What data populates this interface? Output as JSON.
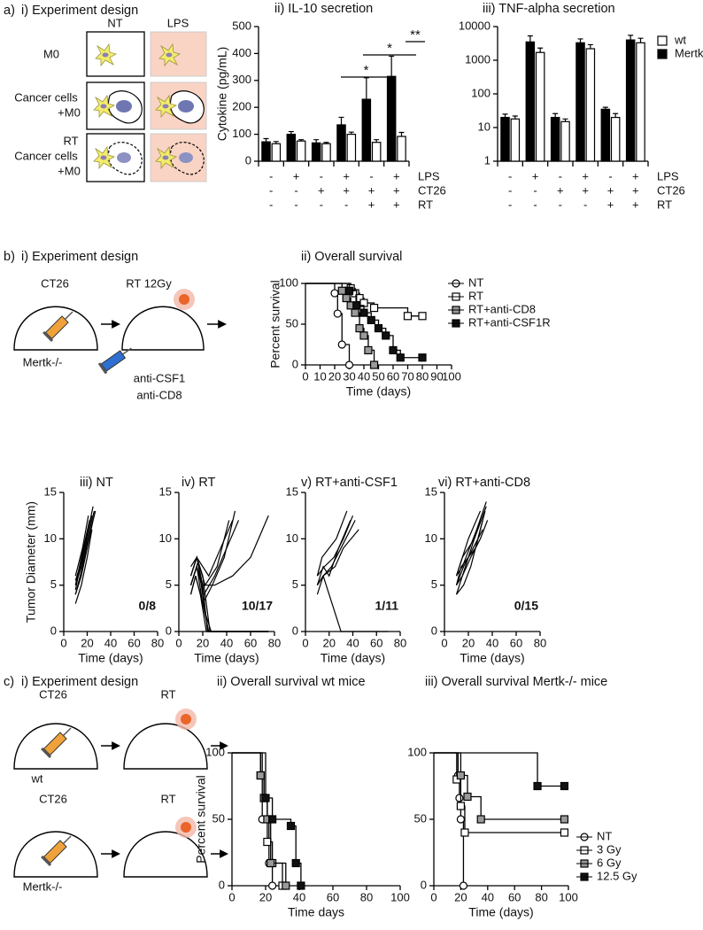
{
  "panel_labels": [
    "a)",
    "b)",
    "c)"
  ],
  "diagram_a": {
    "title": "i) Experiment design",
    "columns": [
      "NT",
      "LPS"
    ],
    "rows": [
      [
        "M0"
      ],
      [
        "Cancer cells",
        "+M0"
      ],
      [
        "RT",
        "Cancer cells",
        "+M0"
      ]
    ]
  },
  "diagram_b": {
    "title": "i) Experiment design",
    "labels": [
      "CT26",
      "RT 12Gy",
      "Mertk-/-",
      "anti-CSF1",
      "anti-CD8"
    ]
  },
  "diagram_c": {
    "title": "i) Experiment design",
    "labels": [
      "CT26",
      "RT",
      "wt",
      "CT26",
      "RT",
      "Mertk-/-"
    ]
  },
  "chart_data": [
    {
      "type": "bar",
      "title": "ii) IL-10 secretion",
      "ylabel": "Cytokine (pg/mL)",
      "ylim": [
        0,
        500
      ],
      "yticks": [
        0,
        100,
        200,
        300,
        400,
        500
      ],
      "series": [
        {
          "color": "#ffffff",
          "values": [
            65,
            75,
            65,
            100,
            70,
            92
          ],
          "errors": [
            8,
            5,
            5,
            8,
            10,
            15
          ]
        },
        {
          "color": "#000000",
          "values": [
            72,
            100,
            68,
            135,
            230,
            315
          ],
          "errors": [
            12,
            10,
            12,
            28,
            80,
            75
          ]
        }
      ],
      "conditions": [
        {
          "name": "LPS",
          "values": [
            "-",
            "+",
            "-",
            "+",
            "-",
            "+"
          ]
        },
        {
          "name": "CT26",
          "values": [
            "-",
            "-",
            "+",
            "+",
            "+",
            "+"
          ]
        },
        {
          "name": "RT",
          "values": [
            "-",
            "-",
            "-",
            "-",
            "+",
            "+"
          ]
        }
      ],
      "annotations": [
        "*",
        "*",
        "**"
      ]
    },
    {
      "type": "bar",
      "title": "iii) TNF-alpha secretion",
      "log": true,
      "ylim": [
        1,
        10000
      ],
      "yticks": [
        1,
        10,
        100,
        1000,
        10000
      ],
      "legend": "right",
      "series": [
        {
          "name": "wt",
          "color": "#ffffff",
          "values": [
            18,
            1700,
            15,
            2200,
            20,
            3300
          ],
          "errors": [
            4,
            600,
            3,
            700,
            6,
            1200
          ]
        },
        {
          "name": "Mertk-/-",
          "color": "#000000",
          "values": [
            20,
            3500,
            20,
            3300,
            35,
            4000
          ],
          "errors": [
            5,
            1800,
            6,
            1000,
            5,
            1500
          ]
        }
      ],
      "conditions": [
        {
          "name": "LPS",
          "values": [
            "-",
            "+",
            "-",
            "+",
            "-",
            "+"
          ]
        },
        {
          "name": "CT26",
          "values": [
            "-",
            "-",
            "+",
            "+",
            "+",
            "+"
          ]
        },
        {
          "name": "RT",
          "values": [
            "-",
            "-",
            "-",
            "-",
            "+",
            "+"
          ]
        }
      ]
    },
    {
      "type": "survival",
      "title": "ii) Overall survival",
      "ylabel": "Percent survival",
      "xlabel": "Time (days)",
      "xlim": [
        0,
        100
      ],
      "xticks": [
        0,
        10,
        20,
        30,
        40,
        50,
        60,
        70,
        80,
        90,
        100
      ],
      "ylim": [
        0,
        100
      ],
      "yticks": [
        0,
        50,
        100
      ],
      "legend": "right",
      "series": [
        {
          "name": "NT",
          "color": "#ffffff",
          "marker": "circle",
          "x": [
            0,
            20,
            22,
            25,
            30
          ],
          "values": [
            100,
            88,
            63,
            25,
            0
          ]
        },
        {
          "name": "RT",
          "color": "#ffffff",
          "marker": "square",
          "x": [
            0,
            31,
            34,
            37,
            40,
            47,
            70,
            80
          ],
          "values": [
            100,
            94,
            88,
            82,
            76,
            70,
            60,
            60
          ]
        },
        {
          "name": "RT+anti-CD8",
          "color": "#9a9a9a",
          "marker": "square",
          "x": [
            0,
            25,
            28,
            31,
            34,
            37,
            40,
            43,
            47
          ],
          "values": [
            100,
            91,
            82,
            73,
            64,
            45,
            36,
            18,
            0
          ]
        },
        {
          "name": "RT+anti-CSF1R",
          "color": "#111111",
          "marker": "square",
          "x": [
            0,
            30,
            35,
            40,
            45,
            50,
            55,
            60,
            65,
            80
          ],
          "values": [
            100,
            91,
            73,
            64,
            55,
            45,
            36,
            18,
            9,
            9
          ]
        }
      ]
    },
    {
      "type": "line",
      "title": "iii) NT",
      "ylabel": "Tumor Diameter (mm)",
      "xlabel": "Time (days)",
      "color": "#000000",
      "xlim": [
        0,
        80
      ],
      "xticks": [
        0,
        20,
        40,
        60,
        80
      ],
      "ylim": [
        0,
        15
      ],
      "yticks": [
        0,
        5,
        10,
        15
      ],
      "annotation": "0/8",
      "series": [
        {
          "x": [
            10,
            15,
            20,
            24
          ],
          "values": [
            3,
            5,
            8,
            11
          ]
        },
        {
          "x": [
            10,
            15,
            20,
            25
          ],
          "values": [
            4,
            6,
            9,
            12
          ]
        },
        {
          "x": [
            10,
            15,
            20,
            26
          ],
          "values": [
            5,
            7,
            10,
            13
          ]
        },
        {
          "x": [
            10,
            14,
            19,
            24
          ],
          "values": [
            4.5,
            7,
            10,
            12.5
          ]
        },
        {
          "x": [
            10,
            15,
            20,
            27
          ],
          "values": [
            4,
            6.5,
            9.5,
            13
          ]
        },
        {
          "x": [
            10,
            15,
            22
          ],
          "values": [
            5,
            8,
            12
          ]
        },
        {
          "x": [
            10,
            16,
            21
          ],
          "values": [
            6,
            9,
            12.5
          ]
        },
        {
          "x": [
            10,
            15,
            20,
            25
          ],
          "values": [
            5.5,
            7.5,
            10.5,
            13.5
          ]
        }
      ]
    },
    {
      "type": "line",
      "title": "iv) RT",
      "xlabel": "Time (days)",
      "color": "#000000",
      "xlim": [
        0,
        80
      ],
      "xticks": [
        0,
        20,
        40,
        60,
        80
      ],
      "ylim": [
        0,
        15
      ],
      "yticks": [
        0,
        5,
        10,
        15
      ],
      "annotation": "10/17",
      "series": [
        {
          "x": [
            10,
            15,
            20,
            25,
            75
          ],
          "values": [
            5,
            7,
            3,
            0,
            0
          ]
        },
        {
          "x": [
            10,
            15,
            20,
            24,
            75
          ],
          "values": [
            6,
            8,
            5,
            0,
            0
          ]
        },
        {
          "x": [
            10,
            14,
            18,
            23,
            75
          ],
          "values": [
            4,
            6,
            4,
            0,
            0
          ]
        },
        {
          "x": [
            10,
            15,
            20,
            26,
            75
          ],
          "values": [
            7,
            8,
            6,
            0,
            0
          ]
        },
        {
          "x": [
            10,
            16,
            22,
            27,
            75
          ],
          "values": [
            5,
            7.5,
            2,
            0,
            0
          ]
        },
        {
          "x": [
            10,
            15,
            21,
            30,
            40,
            50
          ],
          "values": [
            5,
            7,
            4,
            6,
            9,
            12
          ]
        },
        {
          "x": [
            10,
            15,
            22,
            32,
            42
          ],
          "values": [
            6,
            8,
            5,
            7,
            12
          ]
        },
        {
          "x": [
            10,
            14,
            20,
            28,
            38,
            47
          ],
          "values": [
            4,
            6,
            3,
            5,
            8,
            13
          ]
        },
        {
          "x": [
            10,
            15,
            20,
            30,
            45,
            60,
            75
          ],
          "values": [
            5,
            7,
            5,
            5,
            6,
            8,
            12.5
          ]
        },
        {
          "x": [
            10,
            15,
            25,
            35,
            45
          ],
          "values": [
            6,
            8,
            6,
            9,
            12
          ]
        }
      ]
    },
    {
      "type": "line",
      "title": "v) RT+anti-CSF1",
      "xlabel": "Time (days)",
      "color": "#000000",
      "xlim": [
        0,
        80
      ],
      "xticks": [
        0,
        20,
        40,
        60,
        80
      ],
      "ylim": [
        0,
        15
      ],
      "yticks": [
        0,
        5,
        10,
        15
      ],
      "annotation": "1/11",
      "series": [
        {
          "x": [
            10,
            15,
            20,
            25,
            30,
            70
          ],
          "values": [
            5,
            6,
            4,
            2,
            0,
            0
          ]
        },
        {
          "x": [
            10,
            15,
            20,
            28,
            38
          ],
          "values": [
            5,
            7,
            6,
            9,
            12
          ]
        },
        {
          "x": [
            10,
            16,
            24,
            32,
            40
          ],
          "values": [
            6,
            7,
            8,
            10,
            12.5
          ]
        },
        {
          "x": [
            10,
            15,
            22,
            30,
            42
          ],
          "values": [
            4,
            6,
            7,
            9,
            12
          ]
        },
        {
          "x": [
            10,
            14,
            20,
            26,
            35
          ],
          "values": [
            6,
            8,
            9,
            10,
            13
          ]
        },
        {
          "x": [
            10,
            15,
            25,
            32,
            45
          ],
          "values": [
            5,
            6,
            7,
            9,
            11
          ]
        }
      ]
    },
    {
      "type": "line",
      "title": "vi) RT+anti-CD8",
      "xlabel": "Time (days)",
      "color": "#000000",
      "xlim": [
        0,
        80
      ],
      "xticks": [
        0,
        20,
        40,
        60,
        80
      ],
      "ylim": [
        0,
        15
      ],
      "yticks": [
        0,
        5,
        10,
        15
      ],
      "annotation": "0/15",
      "series": [
        {
          "x": [
            10,
            15,
            20,
            25,
            30
          ],
          "values": [
            5,
            6,
            8,
            10,
            12
          ]
        },
        {
          "x": [
            10,
            16,
            22,
            28,
            34
          ],
          "values": [
            4,
            5,
            7,
            10,
            13
          ]
        },
        {
          "x": [
            10,
            15,
            21,
            27,
            35
          ],
          "values": [
            6,
            7,
            9,
            11,
            14
          ]
        },
        {
          "x": [
            10,
            14,
            20,
            26,
            32
          ],
          "values": [
            5,
            7,
            8,
            9,
            12
          ]
        },
        {
          "x": [
            10,
            15,
            20,
            30
          ],
          "values": [
            6,
            8,
            10,
            13
          ]
        },
        {
          "x": [
            10,
            15,
            22,
            30,
            36
          ],
          "values": [
            4,
            6,
            8,
            10,
            12
          ]
        },
        {
          "x": [
            10,
            16,
            24,
            32
          ],
          "values": [
            5,
            7,
            9,
            11
          ]
        },
        {
          "x": [
            10,
            15,
            25,
            35
          ],
          "values": [
            6,
            8,
            10,
            13.5
          ]
        }
      ]
    },
    {
      "type": "survival",
      "title": "ii) Overall survival wt mice",
      "ylabel": "Percent survival",
      "xlabel": "Time days",
      "xlim": [
        0,
        100
      ],
      "xticks": [
        0,
        20,
        40,
        60,
        80,
        100
      ],
      "ylim": [
        0,
        100
      ],
      "yticks": [
        0,
        50,
        100
      ],
      "series": [
        {
          "color": "#ffffff",
          "marker": "circle",
          "x": [
            0,
            18,
            22,
            24
          ],
          "values": [
            100,
            50,
            17,
            0
          ]
        },
        {
          "color": "#ffffff",
          "marker": "square",
          "x": [
            0,
            17,
            19,
            21,
            24,
            30
          ],
          "values": [
            100,
            83,
            66,
            33,
            17,
            0
          ]
        },
        {
          "color": "#9a9a9a",
          "marker": "square",
          "x": [
            0,
            17,
            19,
            21,
            23,
            32
          ],
          "values": [
            100,
            83,
            66,
            50,
            17,
            0
          ]
        },
        {
          "color": "#111111",
          "marker": "square",
          "x": [
            0,
            20,
            24,
            35,
            38,
            41
          ],
          "values": [
            100,
            66,
            50,
            45,
            17,
            0
          ]
        }
      ]
    },
    {
      "type": "survival",
      "title": "iii) Overall survival Mertk-/- mice",
      "xlabel": "Time (days)",
      "xlim": [
        0,
        100
      ],
      "xticks": [
        0,
        20,
        40,
        60,
        80,
        100
      ],
      "ylim": [
        0,
        100
      ],
      "yticks": [
        0,
        50,
        100
      ],
      "legend": "right",
      "series": [
        {
          "name": "NT",
          "color": "#ffffff",
          "marker": "circle",
          "x": [
            0,
            18,
            19,
            20,
            22
          ],
          "values": [
            100,
            83,
            66,
            50,
            0
          ]
        },
        {
          "name": "3 Gy",
          "color": "#ffffff",
          "marker": "square",
          "x": [
            0,
            17,
            20,
            23,
            97
          ],
          "values": [
            100,
            80,
            60,
            40,
            40
          ]
        },
        {
          "name": "6 Gy",
          "color": "#9a9a9a",
          "marker": "square",
          "x": [
            0,
            20,
            25,
            35,
            97
          ],
          "values": [
            100,
            83,
            67,
            50,
            50
          ]
        },
        {
          "name": "12.5 Gy",
          "color": "#111111",
          "marker": "square",
          "x": [
            0,
            77,
            97
          ],
          "values": [
            100,
            75,
            75
          ]
        }
      ]
    }
  ]
}
